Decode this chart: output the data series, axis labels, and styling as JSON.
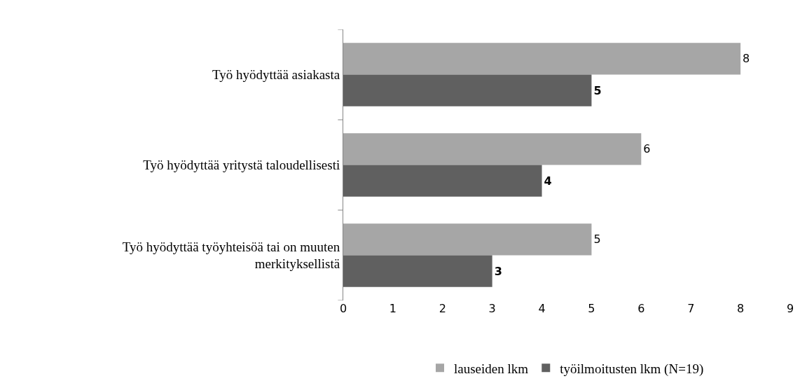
{
  "chart_data": {
    "type": "bar",
    "orientation": "horizontal",
    "categories": [
      "Työ hyödyttää asiakasta",
      "Työ hyödyttää yritystä taloudellisesti",
      "Työ hyödyttää työyhteisöä tai on muuten merkityksellistä"
    ],
    "series": [
      {
        "name": "lauseiden lkm",
        "color": "#a6a6a6",
        "values": [
          8,
          6,
          5
        ]
      },
      {
        "name": "työilmoitusten lkm (N=19)",
        "color": "#606060",
        "values": [
          5,
          4,
          3
        ]
      }
    ],
    "xlim": [
      0,
      9
    ],
    "xticks": [
      0,
      1,
      2,
      3,
      4,
      5,
      6,
      7,
      8,
      9
    ],
    "data_labels": true,
    "legend": "bottom",
    "grid": false
  }
}
